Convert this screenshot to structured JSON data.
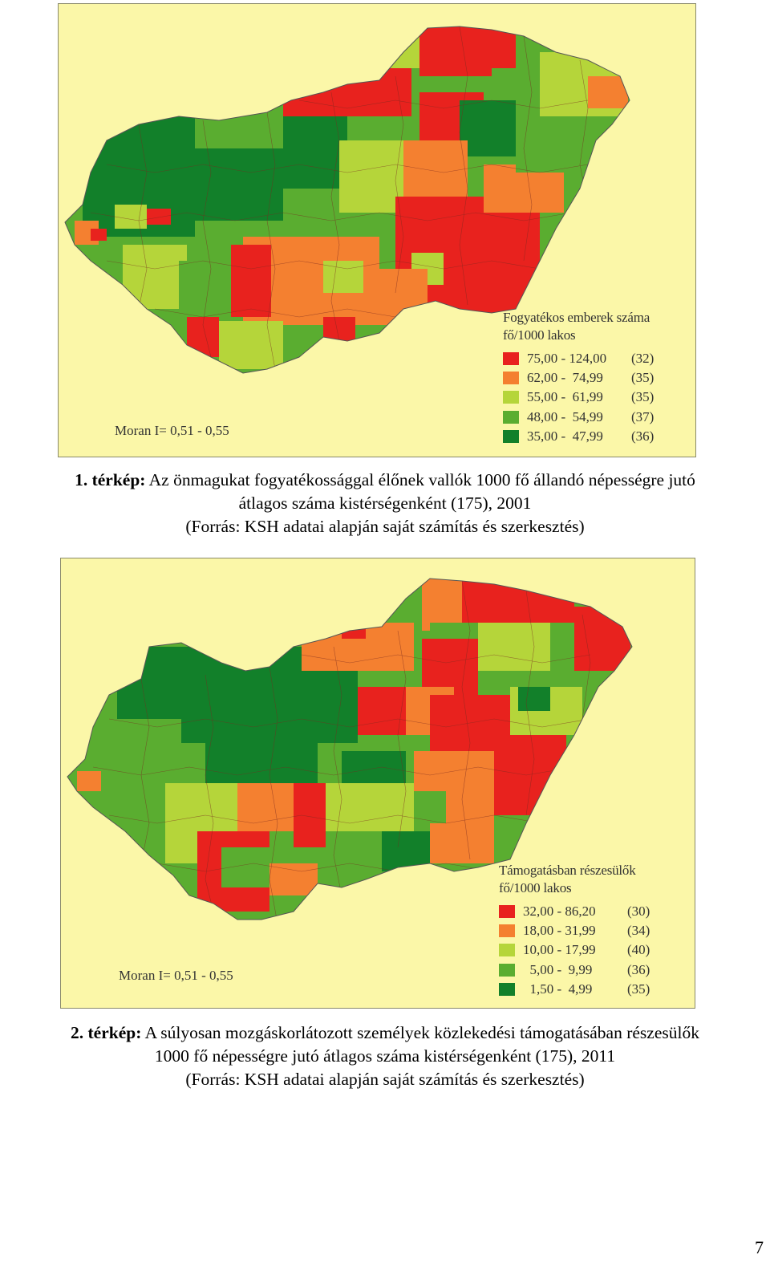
{
  "maps": [
    {
      "legend_title_line1": "Fogyatékos emberek száma",
      "legend_title_line2": "fő/1000 lakos",
      "legend": [
        {
          "range": "75,00 - 124,00",
          "count": "(32)",
          "color": "#e8221e"
        },
        {
          "range": "62,00 -  74,99",
          "count": "(35)",
          "color": "#f48030"
        },
        {
          "range": "55,00 -  61,99",
          "count": "(35)",
          "color": "#b5d53a"
        },
        {
          "range": "48,00 -  54,99",
          "count": "(37)",
          "color": "#5aad30"
        },
        {
          "range": "35,00 -  47,99",
          "count": "(36)",
          "color": "#12802a"
        }
      ],
      "moran": "Moran I= 0,51 - 0,55",
      "caption_number": "1. térkép:",
      "caption_line1": "Az önmagukat fogyatékossággal élőnek vallók 1000 fő állandó népességre jutó",
      "caption_line2": "átlagos száma kistérségenként (175), 2001",
      "caption_line3": "(Forrás: KSH adatai alapján saját számítás és szerkesztés)"
    },
    {
      "legend_title_line1": "Támogatásban részesülők",
      "legend_title_line2": "fő/1000 lakos",
      "legend": [
        {
          "range": "32,00 - 86,20",
          "count": "(30)",
          "color": "#e8221e"
        },
        {
          "range": "18,00 - 31,99",
          "count": "(34)",
          "color": "#f48030"
        },
        {
          "range": "10,00 - 17,99",
          "count": "(40)",
          "color": "#b5d53a"
        },
        {
          "range": "  5,00 -  9,99",
          "count": "(36)",
          "color": "#5aad30"
        },
        {
          "range": "  1,50 -  4,99",
          "count": "(35)",
          "color": "#12802a"
        }
      ],
      "moran": "Moran I= 0,51 - 0,55",
      "caption_number": "2. térkép:",
      "caption_line1": "A súlyosan mozgáskorlátozott személyek közlekedési támogatásában részesülők",
      "caption_line2": "1000 fő népességre jutó átlagos száma kistérségenként (175), 2011",
      "caption_line3": "(Forrás: KSH adatai alapján saját számítás és szerkesztés)"
    }
  ],
  "page_number": "7"
}
